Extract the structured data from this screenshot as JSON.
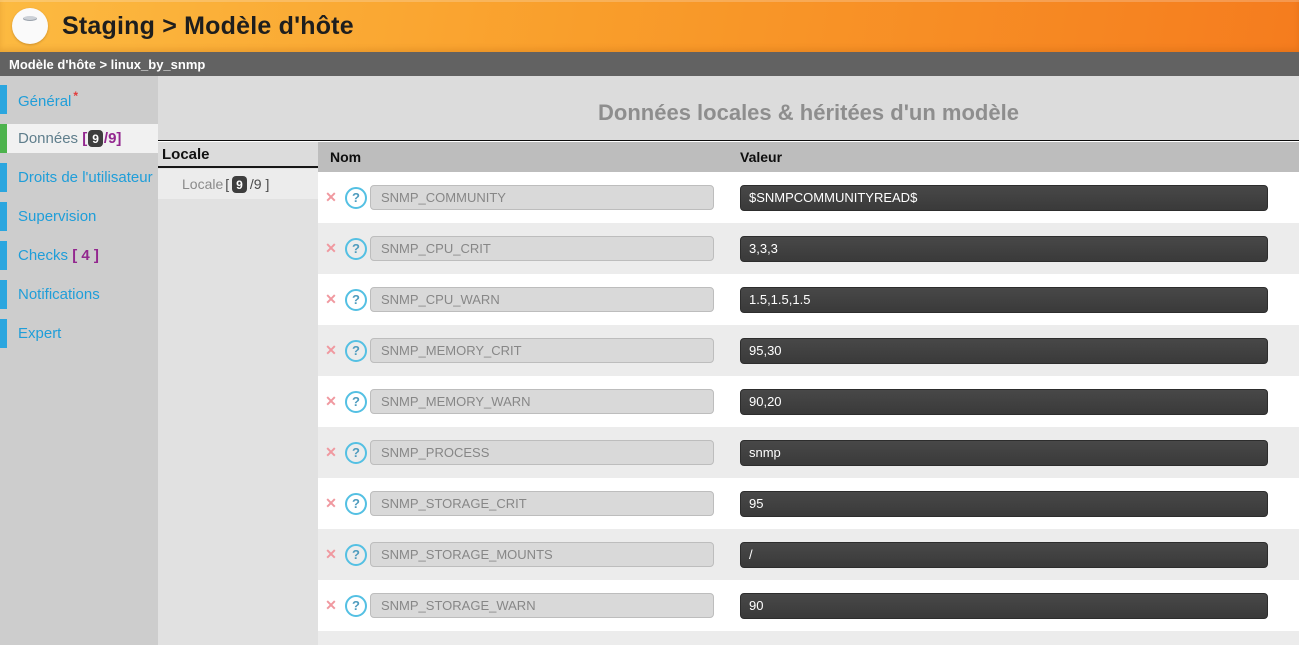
{
  "header": {
    "title": "Staging > Modèle d'hôte",
    "icon": "database-icon"
  },
  "breadcrumb": {
    "text": "Modèle d'hôte > linux_by_snmp"
  },
  "sidebar": {
    "items": [
      {
        "label": "Général",
        "required_marker": "*"
      },
      {
        "label": "Données",
        "bracket_open": "[",
        "badge": "9",
        "total": "/9",
        "bracket_close": "]",
        "active": true
      },
      {
        "label": "Droits de l'utilisateur"
      },
      {
        "label": "Supervision"
      },
      {
        "label": "Checks",
        "count_text": "[ 4 ]"
      },
      {
        "label": "Notifications"
      },
      {
        "label": "Expert"
      }
    ]
  },
  "main": {
    "title": "Données locales & héritées d'un modèle",
    "locale_column": {
      "header": "Locale",
      "selected": {
        "label": "Locale",
        "bracket_open": "[",
        "badge": "9",
        "total": "/9",
        "bracket_close": "]"
      }
    },
    "table": {
      "columns": [
        "Nom",
        "Valeur"
      ],
      "rows": [
        {
          "name": "SNMP_COMMUNITY",
          "value": "$SNMPCOMMUNITYREAD$"
        },
        {
          "name": "SNMP_CPU_CRIT",
          "value": "3,3,3"
        },
        {
          "name": "SNMP_CPU_WARN",
          "value": "1.5,1.5,1.5"
        },
        {
          "name": "SNMP_MEMORY_CRIT",
          "value": "95,30"
        },
        {
          "name": "SNMP_MEMORY_WARN",
          "value": "90,20"
        },
        {
          "name": "SNMP_PROCESS",
          "value": "snmp"
        },
        {
          "name": "SNMP_STORAGE_CRIT",
          "value": "95"
        },
        {
          "name": "SNMP_STORAGE_MOUNTS",
          "value": "/"
        },
        {
          "name": "SNMP_STORAGE_WARN",
          "value": "90"
        }
      ]
    }
  },
  "icons": {
    "delete_glyph": "✕",
    "help_glyph": "?"
  },
  "colors": {
    "header_orange_start": "#fcba41",
    "header_orange_end": "#f57c1e",
    "breadcrumb_gray": "#626262",
    "sidebar_bg": "#cdcdcd",
    "sidebar_link_blue": "#1f9ed9",
    "active_item_green": "#4db34d",
    "accent_purple": "#93278f",
    "required_red": "#e23b3b",
    "delete_pink": "#f0989f",
    "help_blue": "#54c0e3",
    "value_field_dark": "#3a3a3a",
    "row_alt_gray": "#ececec"
  }
}
